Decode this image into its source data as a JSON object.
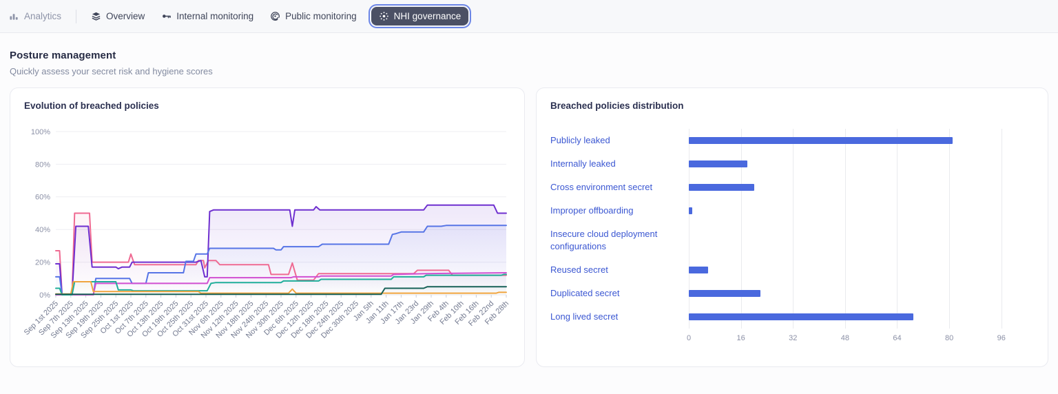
{
  "nav": {
    "items": [
      {
        "label": "Analytics",
        "icon": "bar-chart-icon",
        "state": "inactive"
      },
      {
        "label": "Overview",
        "icon": "layers-icon",
        "state": "normal"
      },
      {
        "label": "Internal monitoring",
        "icon": "key-icon",
        "state": "normal"
      },
      {
        "label": "Public monitoring",
        "icon": "ripple-icon",
        "state": "normal"
      },
      {
        "label": "NHI governance",
        "icon": "governance-icon",
        "state": "selected"
      }
    ]
  },
  "section": {
    "title": "Posture management",
    "subtitle": "Quickly assess your secret risk and hygiene scores"
  },
  "colors": {
    "nav_selected_bg": "#4b5064",
    "nav_focus_ring": "#6c86e6",
    "link_blue": "#3b57d2",
    "bar_blue": "#4a69de",
    "grid": "#ededf2"
  },
  "chart_data": [
    {
      "type": "area",
      "title": "Evolution of breached policies",
      "x_span_days": 180,
      "x_tick_interval_days": 6,
      "x_tick_labels": [
        "Sep 1st 2025",
        "Sep 7th 2025",
        "Sep 13th 2025",
        "Sep 19th 2025",
        "Sep 25th 2025",
        "Oct 1st 2025",
        "Oct 7th 2025",
        "Oct 13th 2025",
        "Oct 19th 2025",
        "Oct 25th 2025",
        "Oct 31st 2025",
        "Nov 6th 2025",
        "Nov 12th 2025",
        "Nov 18th 2025",
        "Nov 24th 2025",
        "Nov 30th 2025",
        "Dec 6th 2025",
        "Dec 12th 2025",
        "Dec 18th 2025",
        "Dec 24th 2025",
        "Dec 30th 2025",
        "Jan 5th",
        "Jan 11th",
        "Jan 17th",
        "Jan 23rd",
        "Jan 29th",
        "Feb 4th",
        "Feb 10th",
        "Feb 16th",
        "Feb 22nd",
        "Feb 28th"
      ],
      "ylim": [
        0,
        100
      ],
      "yticks": [
        0,
        20,
        40,
        60,
        80,
        100
      ],
      "y_unit": "%",
      "grid": "horizontal",
      "legend": "none",
      "series": [
        {
          "name": "pink",
          "color": "#ef6a92",
          "fill_opacity": 0.07,
          "points": [
            [
              0,
              27
            ],
            [
              1.5,
              27
            ],
            [
              2.5,
              0
            ],
            [
              6.5,
              0
            ],
            [
              7.5,
              50
            ],
            [
              13.5,
              50
            ],
            [
              14.5,
              20
            ],
            [
              29,
              20
            ],
            [
              30,
              25
            ],
            [
              31.5,
              18.5
            ],
            [
              56,
              18.5
            ],
            [
              57,
              21
            ],
            [
              59,
              21
            ],
            [
              59.5,
              16.5
            ],
            [
              61,
              21
            ],
            [
              64,
              21
            ],
            [
              65.5,
              18.5
            ],
            [
              85,
              18.5
            ],
            [
              86,
              12.5
            ],
            [
              93,
              12.5
            ],
            [
              94.5,
              19.5
            ],
            [
              96.5,
              9
            ],
            [
              103,
              9
            ],
            [
              105,
              13
            ],
            [
              143,
              13
            ],
            [
              144.5,
              15
            ],
            [
              157,
              15
            ],
            [
              158.5,
              12
            ],
            [
              180,
              12
            ]
          ]
        },
        {
          "name": "purple",
          "color": "#6e2fcf",
          "fill_opacity": 0.11,
          "points": [
            [
              0,
              19
            ],
            [
              1.5,
              19
            ],
            [
              2.5,
              0
            ],
            [
              6.5,
              0
            ],
            [
              8,
              42
            ],
            [
              13,
              42
            ],
            [
              14.5,
              17
            ],
            [
              24,
              17
            ],
            [
              25,
              16
            ],
            [
              26.5,
              17
            ],
            [
              29.5,
              17
            ],
            [
              30.5,
              20
            ],
            [
              56,
              20
            ],
            [
              58,
              21
            ],
            [
              59.5,
              11
            ],
            [
              60.5,
              11
            ],
            [
              61.5,
              51
            ],
            [
              63,
              52
            ],
            [
              93.5,
              52
            ],
            [
              94.5,
              42
            ],
            [
              95.5,
              52
            ],
            [
              103,
              52
            ],
            [
              104,
              54
            ],
            [
              105.5,
              52
            ],
            [
              147,
              52
            ],
            [
              148.5,
              55
            ],
            [
              175,
              55
            ],
            [
              176.5,
              50
            ],
            [
              180,
              50
            ]
          ]
        },
        {
          "name": "blue",
          "color": "#5674e6",
          "fill_opacity": 0.1,
          "points": [
            [
              0,
              11
            ],
            [
              1.5,
              11
            ],
            [
              2.5,
              0
            ],
            [
              15,
              0
            ],
            [
              16,
              10
            ],
            [
              29.5,
              10
            ],
            [
              30.5,
              7
            ],
            [
              36,
              7
            ],
            [
              37,
              13.5
            ],
            [
              51,
              13.5
            ],
            [
              52,
              20.5
            ],
            [
              55,
              20.5
            ],
            [
              56,
              25
            ],
            [
              60.5,
              25
            ],
            [
              61.5,
              28.5
            ],
            [
              87,
              28.5
            ],
            [
              88,
              27.5
            ],
            [
              90,
              27.5
            ],
            [
              91,
              29.5
            ],
            [
              105,
              29.5
            ],
            [
              106.5,
              31
            ],
            [
              133,
              31
            ],
            [
              134.5,
              37
            ],
            [
              136,
              37.5
            ],
            [
              138,
              38.5
            ],
            [
              147,
              38.5
            ],
            [
              148.5,
              42
            ],
            [
              154,
              42
            ],
            [
              156,
              42.5
            ],
            [
              180,
              42.5
            ]
          ]
        },
        {
          "name": "magenta",
          "color": "#d14fd1",
          "fill_opacity": 0.05,
          "points": [
            [
              0,
              0
            ],
            [
              15,
              0
            ],
            [
              16,
              7
            ],
            [
              60.5,
              7
            ],
            [
              61.5,
              10.5
            ],
            [
              94,
              10.5
            ],
            [
              95,
              11
            ],
            [
              105,
              11
            ],
            [
              106,
              11.5
            ],
            [
              134,
              11.5
            ],
            [
              135,
              12.5
            ],
            [
              148,
              13
            ],
            [
              180,
              13.5
            ]
          ]
        },
        {
          "name": "teal",
          "color": "#1fae99",
          "fill_opacity": 0.05,
          "points": [
            [
              0,
              4
            ],
            [
              1.5,
              4
            ],
            [
              2.5,
              0
            ],
            [
              6.5,
              0
            ],
            [
              7.5,
              8
            ],
            [
              24,
              8
            ],
            [
              25,
              3
            ],
            [
              30,
              3
            ],
            [
              31,
              2.5
            ],
            [
              60.5,
              2.5
            ],
            [
              62,
              7
            ],
            [
              64,
              7.5
            ],
            [
              90,
              7.5
            ],
            [
              91,
              8.5
            ],
            [
              105,
              8.5
            ],
            [
              106,
              9.5
            ],
            [
              134,
              9.5
            ],
            [
              135,
              11
            ],
            [
              147,
              11
            ],
            [
              148,
              12
            ],
            [
              178,
              12
            ],
            [
              179,
              12.5
            ],
            [
              180,
              12.5
            ]
          ]
        },
        {
          "name": "orange",
          "color": "#f0a43e",
          "fill_opacity": 0.05,
          "points": [
            [
              0,
              0.5
            ],
            [
              6,
              0.5
            ],
            [
              7,
              8
            ],
            [
              14,
              8
            ],
            [
              15,
              2
            ],
            [
              57,
              2
            ],
            [
              58,
              1
            ],
            [
              93,
              1
            ],
            [
              94.5,
              3.5
            ],
            [
              96,
              1
            ],
            [
              176,
              1
            ],
            [
              177,
              1.5
            ],
            [
              180,
              1.5
            ]
          ]
        },
        {
          "name": "dark-teal",
          "color": "#176158",
          "fill_opacity": 0.05,
          "points": [
            [
              0,
              0.3
            ],
            [
              130,
              0.3
            ],
            [
              131.5,
              4
            ],
            [
              147,
              4
            ],
            [
              148.5,
              5
            ],
            [
              180,
              5
            ]
          ]
        }
      ]
    },
    {
      "type": "bar",
      "orientation": "horizontal",
      "title": "Breached policies distribution",
      "categories": [
        "Publicly leaked",
        "Internally leaked",
        "Cross environment secret",
        "Improper offboarding",
        "Insecure cloud deployment configurations",
        "Reused secret",
        "Duplicated secret",
        "Long lived secret"
      ],
      "values": [
        81,
        18,
        20,
        1,
        0,
        6,
        22,
        69
      ],
      "xticks": [
        0,
        16,
        32,
        48,
        64,
        80,
        96
      ],
      "xlim": [
        0,
        106
      ],
      "bar_color": "#4a69de",
      "grid": "vertical",
      "legend": "none"
    }
  ]
}
